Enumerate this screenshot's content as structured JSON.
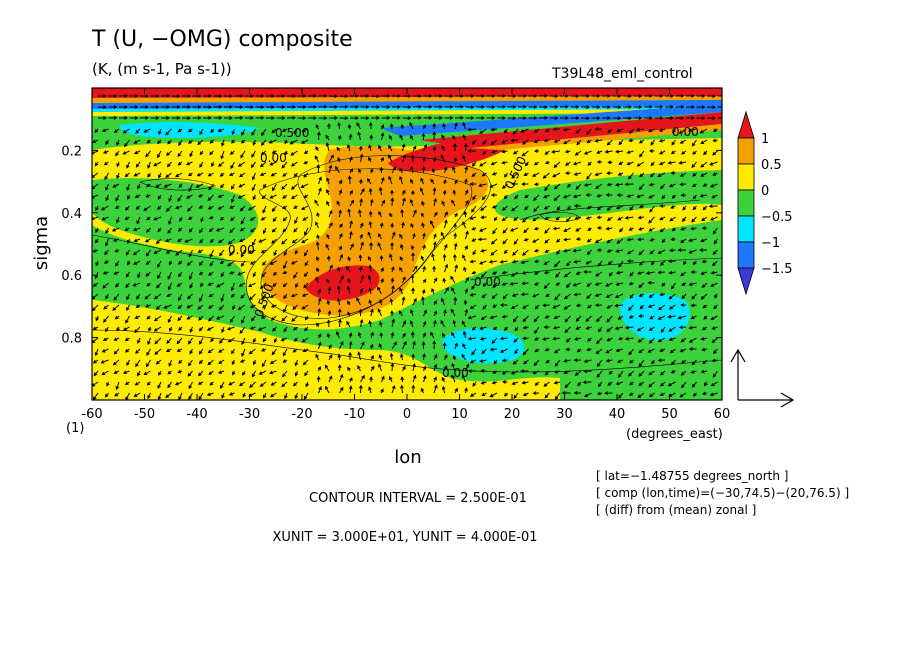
{
  "header": {
    "title": "T (U, −OMG) composite",
    "subtitle": "(K, (m s-1, Pa s-1))",
    "run_name": "T39L48_eml_control"
  },
  "chart_data": {
    "type": "contour-vector",
    "variable": "T anomaly with (U, −OMG) wind vectors",
    "xlabel": "lon",
    "x_units": "(degrees_east)",
    "ylabel": "sigma",
    "xlim": [
      -60,
      60
    ],
    "ylim": [
      1.0,
      0.0
    ],
    "x_ticks": [
      -60,
      -50,
      -40,
      -30,
      -20,
      -10,
      0,
      10,
      20,
      30,
      40,
      50,
      60
    ],
    "y_ticks": [
      0.2,
      0.4,
      0.6,
      0.8
    ],
    "y_bottom_label": "(1)",
    "colorbar": {
      "levels": [
        1,
        0.5,
        0,
        -0.5,
        -1,
        -1.5
      ],
      "labels": [
        "1",
        "0.5",
        "0",
        "−0.5",
        "−1",
        "−1.5"
      ],
      "colors": [
        "#e8141c",
        "#f5a000",
        "#ffeb00",
        "#3cd23c",
        "#00e5ff",
        "#1e78ff",
        "#3a3ad6"
      ]
    },
    "contour_labels": [
      "0.00",
      "0.500",
      "0.00",
      "0.00",
      "0.500",
      "0.00",
      "0.500",
      "0.00"
    ],
    "contour_interval": "CONTOUR INTERVAL = 2.500E-01",
    "units_line": "XUNIT = 3.000E+01, YUNIT = 4.000E-01",
    "info": [
      "[ lat=−1.48755 degrees_north ]",
      "[ comp (lon,time)=(−30,74.5)−(20,76.5) ]",
      "[ (diff) from (mean) zonal ]"
    ]
  }
}
